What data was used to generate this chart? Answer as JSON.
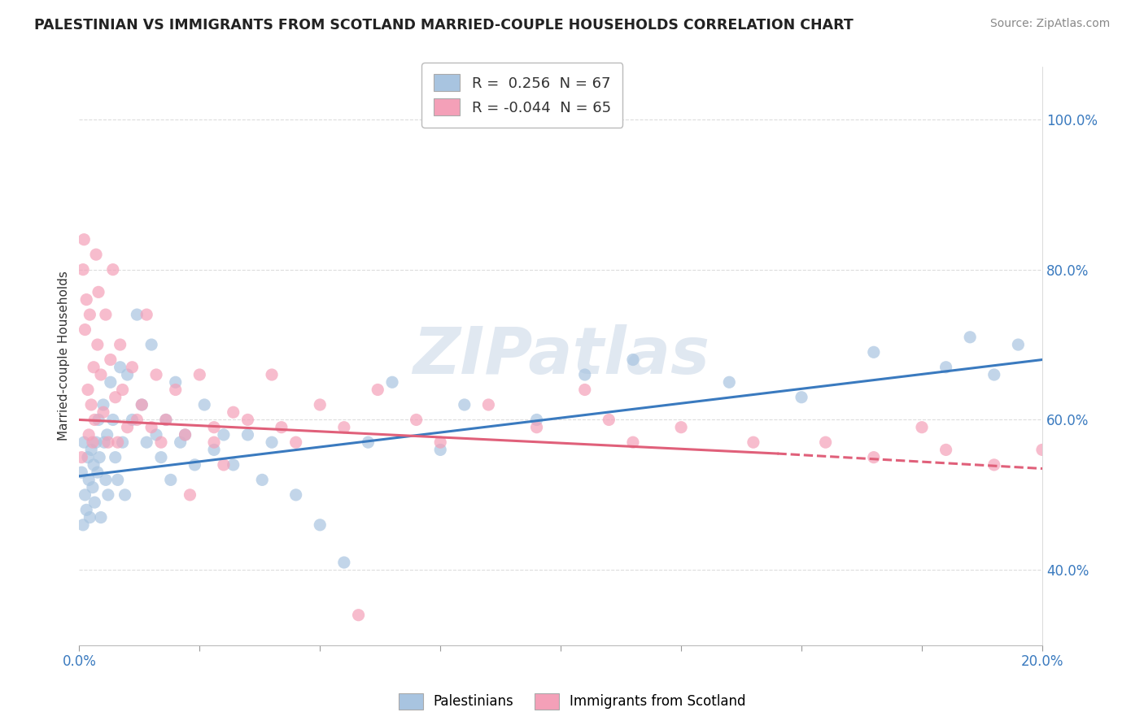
{
  "title": "PALESTINIAN VS IMMIGRANTS FROM SCOTLAND MARRIED-COUPLE HOUSEHOLDS CORRELATION CHART",
  "source": "Source: ZipAtlas.com",
  "ylabel": "Married-couple Households",
  "r_blue": 0.256,
  "n_blue": 67,
  "r_pink": -0.044,
  "n_pink": 65,
  "legend_label_blue": "Palestinians",
  "legend_label_pink": "Immigrants from Scotland",
  "blue_color": "#a8c4e0",
  "pink_color": "#f4a0b8",
  "blue_line_color": "#3a7abf",
  "pink_line_color": "#e0607a",
  "watermark_color": "#ccd9e8",
  "xlim": [
    0.0,
    20.0
  ],
  "ylim": [
    30.0,
    107.0
  ],
  "yticks": [
    40.0,
    60.0,
    80.0,
    100.0
  ],
  "xticks": [
    0.0,
    2.5,
    5.0,
    7.5,
    10.0,
    12.5,
    15.0,
    17.5,
    20.0
  ],
  "blue_line_x0": 0.0,
  "blue_line_y0": 52.5,
  "blue_line_x1": 20.0,
  "blue_line_y1": 68.0,
  "pink_line_x0": 0.0,
  "pink_line_y0": 60.0,
  "pink_line_x1": 14.5,
  "pink_line_y1": 55.5,
  "pink_dash_x0": 14.5,
  "pink_dash_y0": 55.5,
  "pink_dash_x1": 20.0,
  "pink_dash_y1": 53.5,
  "blue_points_x": [
    0.05,
    0.08,
    0.1,
    0.12,
    0.15,
    0.18,
    0.2,
    0.22,
    0.25,
    0.28,
    0.3,
    0.32,
    0.35,
    0.38,
    0.4,
    0.42,
    0.45,
    0.5,
    0.52,
    0.55,
    0.58,
    0.6,
    0.65,
    0.7,
    0.75,
    0.8,
    0.85,
    0.9,
    0.95,
    1.0,
    1.1,
    1.2,
    1.3,
    1.4,
    1.5,
    1.6,
    1.7,
    1.8,
    1.9,
    2.0,
    2.1,
    2.2,
    2.4,
    2.6,
    2.8,
    3.0,
    3.2,
    3.5,
    3.8,
    4.0,
    4.5,
    5.0,
    5.5,
    6.0,
    6.5,
    7.5,
    8.0,
    9.5,
    10.5,
    11.5,
    13.5,
    15.0,
    16.5,
    18.0,
    19.0,
    18.5,
    19.5
  ],
  "blue_points_y": [
    53.0,
    46.0,
    57.0,
    50.0,
    48.0,
    55.0,
    52.0,
    47.0,
    56.0,
    51.0,
    54.0,
    49.0,
    57.0,
    53.0,
    60.0,
    55.0,
    47.0,
    62.0,
    57.0,
    52.0,
    58.0,
    50.0,
    65.0,
    60.0,
    55.0,
    52.0,
    67.0,
    57.0,
    50.0,
    66.0,
    60.0,
    74.0,
    62.0,
    57.0,
    70.0,
    58.0,
    55.0,
    60.0,
    52.0,
    65.0,
    57.0,
    58.0,
    54.0,
    62.0,
    56.0,
    58.0,
    54.0,
    58.0,
    52.0,
    57.0,
    50.0,
    46.0,
    41.0,
    57.0,
    65.0,
    56.0,
    62.0,
    60.0,
    66.0,
    68.0,
    65.0,
    63.0,
    69.0,
    67.0,
    66.0,
    71.0,
    70.0
  ],
  "pink_points_x": [
    0.05,
    0.08,
    0.1,
    0.12,
    0.15,
    0.18,
    0.2,
    0.22,
    0.25,
    0.28,
    0.3,
    0.32,
    0.35,
    0.38,
    0.4,
    0.45,
    0.5,
    0.55,
    0.6,
    0.65,
    0.7,
    0.75,
    0.8,
    0.85,
    0.9,
    1.0,
    1.1,
    1.2,
    1.3,
    1.4,
    1.5,
    1.6,
    1.7,
    1.8,
    2.0,
    2.2,
    2.5,
    2.8,
    3.0,
    3.5,
    4.0,
    4.5,
    5.0,
    5.5,
    6.2,
    7.0,
    7.5,
    8.5,
    9.5,
    10.5,
    11.0,
    11.5,
    12.5,
    14.0,
    15.5,
    16.5,
    17.5,
    18.0,
    19.0,
    20.0,
    2.3,
    2.8,
    3.2,
    4.2,
    5.8
  ],
  "pink_points_y": [
    55.0,
    80.0,
    84.0,
    72.0,
    76.0,
    64.0,
    58.0,
    74.0,
    62.0,
    57.0,
    67.0,
    60.0,
    82.0,
    70.0,
    77.0,
    66.0,
    61.0,
    74.0,
    57.0,
    68.0,
    80.0,
    63.0,
    57.0,
    70.0,
    64.0,
    59.0,
    67.0,
    60.0,
    62.0,
    74.0,
    59.0,
    66.0,
    57.0,
    60.0,
    64.0,
    58.0,
    66.0,
    59.0,
    54.0,
    60.0,
    66.0,
    57.0,
    62.0,
    59.0,
    64.0,
    60.0,
    57.0,
    62.0,
    59.0,
    64.0,
    60.0,
    57.0,
    59.0,
    57.0,
    57.0,
    55.0,
    59.0,
    56.0,
    54.0,
    56.0,
    50.0,
    57.0,
    61.0,
    59.0,
    34.0
  ]
}
